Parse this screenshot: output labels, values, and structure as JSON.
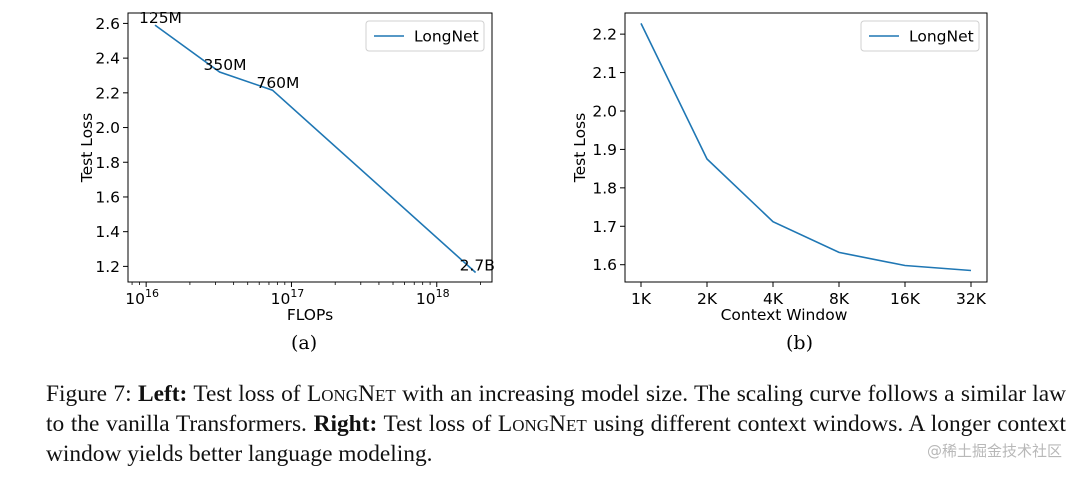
{
  "chart_data": [
    {
      "type": "line",
      "panel": "(a)",
      "xscale": "log",
      "xlabel": "FLOPs",
      "ylabel": "Test Loss",
      "xlim": [
        7500000000000000.0,
        2.4e+18
      ],
      "ylim": [
        1.11,
        2.66
      ],
      "xticks": [
        {
          "value": 1e+16,
          "base": "10",
          "exp": "16"
        },
        {
          "value": 1e+17,
          "base": "10",
          "exp": "17"
        },
        {
          "value": 1e+18,
          "base": "10",
          "exp": "18"
        }
      ],
      "yticks": [
        "1.2",
        "1.4",
        "1.6",
        "1.8",
        "2.0",
        "2.2",
        "2.4",
        "2.6"
      ],
      "legend": {
        "position": "top-right",
        "entries": [
          "LongNet"
        ]
      },
      "series": [
        {
          "name": "LongNet",
          "color": "#1f77b4",
          "points": [
            {
              "x": 1.15e+16,
              "y": 2.59,
              "label": "125M"
            },
            {
              "x": 3.2e+16,
              "y": 2.32,
              "label": "350M"
            },
            {
              "x": 7.4e+16,
              "y": 2.215,
              "label": "760M"
            },
            {
              "x": 1.85e+18,
              "y": 1.165,
              "label": "2.7B"
            }
          ]
        }
      ]
    },
    {
      "type": "line",
      "panel": "(b)",
      "xscale": "category",
      "xlabel": "Context Window",
      "ylabel": "Test Loss",
      "categories": [
        "1K",
        "2K",
        "4K",
        "8K",
        "16K",
        "32K"
      ],
      "ylim": [
        1.555,
        2.255
      ],
      "yticks": [
        "1.6",
        "1.7",
        "1.8",
        "1.9",
        "2.0",
        "2.1",
        "2.2"
      ],
      "legend": {
        "position": "top-right",
        "entries": [
          "LongNet"
        ]
      },
      "series": [
        {
          "name": "LongNet",
          "color": "#1f77b4",
          "values": [
            2.228,
            1.875,
            1.712,
            1.632,
            1.598,
            1.585
          ]
        }
      ]
    }
  ],
  "caption": {
    "figure_label": "Figure 7:",
    "left_label": "Left:",
    "left_text_1": "Test loss of",
    "model_first": "L",
    "model_first_rest": "ONG",
    "model_second": "N",
    "model_second_rest": "ET",
    "left_text_2": "with an increasing model size. The scaling curve follows a similar law to the vanilla Transformers.",
    "right_label": "Right:",
    "right_text_1": "Test loss of",
    "right_text_2": "using different context windows. A longer context window yields better language modeling."
  },
  "watermark": "@稀土掘金技术社区"
}
